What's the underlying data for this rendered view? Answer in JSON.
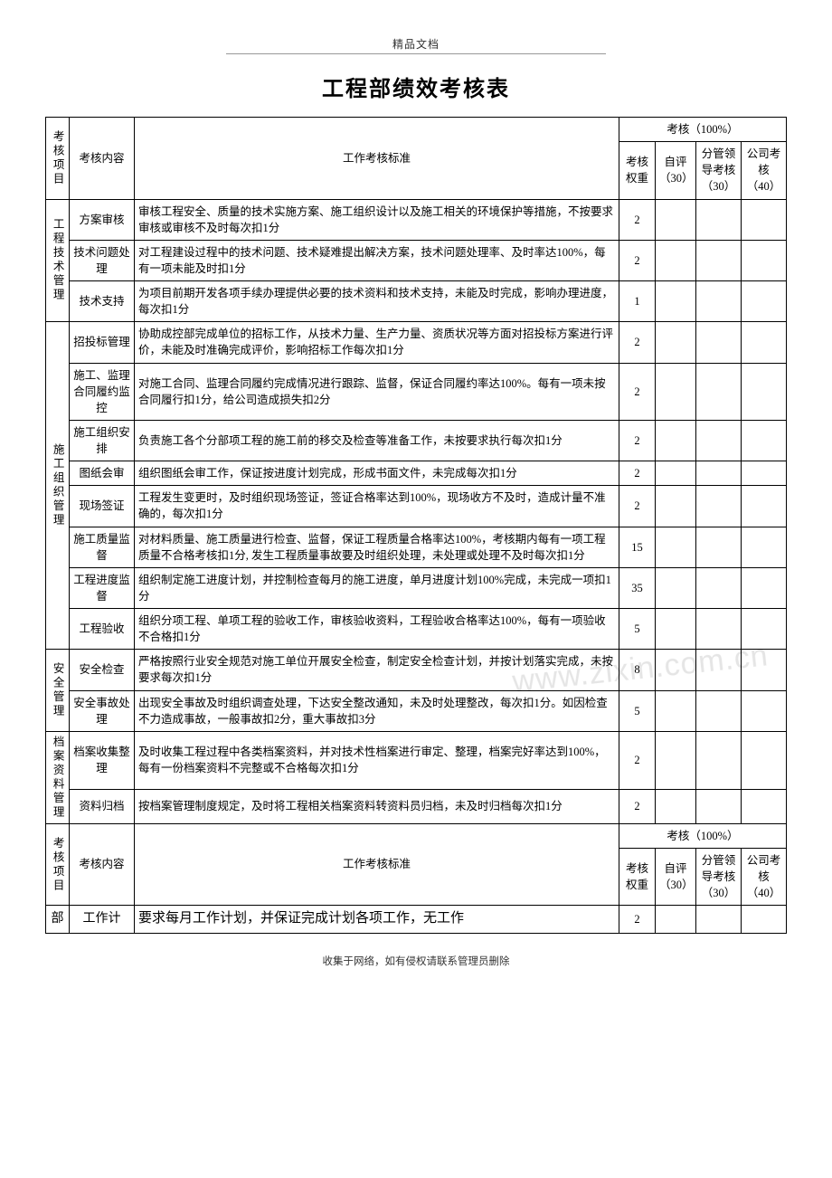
{
  "header_label": "精品文档",
  "title": "工程部绩效考核表",
  "footer_note": "收集于网络，如有侵权请联系管理员删除",
  "watermark": "www.zixin.com.cn",
  "head": {
    "cat": "考核项目",
    "item": "考核内容",
    "std": "工作考核标准",
    "score_group": "考核（100%）",
    "wt": "考核权重",
    "self": "自评（30）",
    "lead": "分管领导考核（30）",
    "comp": "公司考核（40）"
  },
  "groups": [
    {
      "cat": "工程技术管理",
      "rows": [
        {
          "item": "方案审核",
          "std": "审核工程安全、质量的技术实施方案、施工组织设计以及施工相关的环境保护等措施，不按要求审核或审核不及时每次扣1分",
          "wt": "2"
        },
        {
          "item": "技术问题处理",
          "std": "对工程建设过程中的技术问题、技术疑难提出解决方案，技术问题处理率、及时率达100%，每有一项未能及时扣1分",
          "wt": "2"
        },
        {
          "item": "技术支持",
          "std": "为项目前期开发各项手续办理提供必要的技术资料和技术支持，未能及时完成，影响办理进度，每次扣1分",
          "wt": "1"
        }
      ]
    },
    {
      "cat": "施工组织管理",
      "rows": [
        {
          "item": "招投标管理",
          "std": "协助成控部完成单位的招标工作，从技术力量、生产力量、资质状况等方面对招投标方案进行评价，未能及时准确完成评价，影响招标工作每次扣1分",
          "wt": "2"
        },
        {
          "item": "施工、监理合同履约监控",
          "std": "对施工合同、监理合同履约完成情况进行跟踪、监督，保证合同履约率达100%。每有一项未按合同履行扣1分，给公司造成损失扣2分",
          "wt": "2"
        },
        {
          "item": "施工组织安排",
          "std": "负责施工各个分部项工程的施工前的移交及检查等准备工作，未按要求执行每次扣1分",
          "wt": "2"
        },
        {
          "item": "图纸会审",
          "std": "组织图纸会审工作，保证按进度计划完成，形成书面文件，未完成每次扣1分",
          "wt": "2"
        },
        {
          "item": "现场签证",
          "std": "工程发生变更时，及时组织现场签证，签证合格率达到100%，现场收方不及时，造成计量不准确的，每次扣1分",
          "wt": "2"
        },
        {
          "item": "施工质量监督",
          "std": "对材料质量、施工质量进行检查、监督，保证工程质量合格率达100%，考核期内每有一项工程质量不合格考核扣1分, 发生工程质量事故要及时组织处理，未处理或处理不及时每次扣1分",
          "wt": "15"
        },
        {
          "item": "工程进度监督",
          "std": "组织制定施工进度计划，并控制检查每月的施工进度，单月进度计划100%完成，未完成一项扣1分",
          "wt": "35"
        },
        {
          "item": "工程验收",
          "std": "组织分项工程、单项工程的验收工作，审核验收资料，工程验收合格率达100%，每有一项验收不合格扣1分",
          "wt": "5"
        }
      ]
    },
    {
      "cat": "安全管理",
      "rows": [
        {
          "item": "安全检查",
          "std": "严格按照行业安全规范对施工单位开展安全检查，制定安全检查计划，并按计划落实完成，未按要求每次扣1分",
          "wt": "8"
        },
        {
          "item": "安全事故处理",
          "std": "出现安全事故及时组织调查处理，下达安全整改通知，未及时处理整改，每次扣1分。如因检查不力造成事故，一般事故扣2分，重大事故扣3分",
          "wt": "5"
        }
      ]
    },
    {
      "cat": "档案资料管理",
      "rows": [
        {
          "item": "档案收集整理",
          "std": "及时收集工程过程中各类档案资料，并对技术性档案进行审定、整理，档案完好率达到100%，每有一份档案资料不完整或不合格每次扣1分",
          "wt": "2"
        },
        {
          "item": "资料归档",
          "std": "按档案管理制度规定，及时将工程相关档案资料转资料员归档，未及时归档每次扣1分",
          "wt": "2"
        }
      ]
    }
  ],
  "tail": {
    "cat": "部",
    "item": "工作计",
    "std": "要求每月工作计划，并保证完成计划各项工作，无工作",
    "wt": "2"
  }
}
